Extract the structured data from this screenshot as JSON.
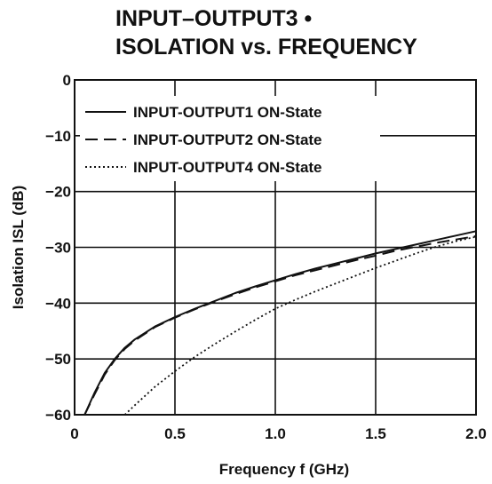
{
  "title_line1": "INPUT–OUTPUT3 •",
  "title_line2": "ISOLATION vs. FREQUENCY",
  "chart_data": {
    "type": "line",
    "xlabel": "Frequency  f (GHz)",
    "ylabel": "Isolation  ISL (dB)",
    "xlim": [
      0,
      2.0
    ],
    "ylim": [
      -60,
      0
    ],
    "xticks": [
      "0",
      "0.5",
      "1.0",
      "1.5",
      "2.0"
    ],
    "yticks": [
      "0",
      "−10",
      "−20",
      "−30",
      "−40",
      "−50",
      "−60"
    ],
    "grid": true,
    "legend": "top-left",
    "series": [
      {
        "name": "INPUT-OUTPUT1 ON-State",
        "style": "solid",
        "x": [
          0.05,
          0.1,
          0.15,
          0.2,
          0.25,
          0.3,
          0.4,
          0.5,
          0.6,
          0.7,
          0.8,
          0.9,
          1.0,
          1.1,
          1.2,
          1.3,
          1.4,
          1.5,
          1.6,
          1.7,
          1.8,
          1.9,
          2.0
        ],
        "y": [
          -60,
          -56,
          -52.5,
          -50,
          -48,
          -46.5,
          -44.2,
          -42.5,
          -41,
          -39.6,
          -38.2,
          -37,
          -35.9,
          -34.8,
          -33.8,
          -32.9,
          -32,
          -31.1,
          -30.3,
          -29.5,
          -28.7,
          -27.9,
          -27.1
        ]
      },
      {
        "name": "INPUT-OUTPUT2 ON-State",
        "style": "dashed",
        "x": [
          0.05,
          0.1,
          0.15,
          0.2,
          0.25,
          0.3,
          0.4,
          0.5,
          0.6,
          0.7,
          0.8,
          0.9,
          1.0,
          1.1,
          1.2,
          1.3,
          1.4,
          1.5,
          1.6,
          1.7,
          1.8,
          1.9,
          2.0
        ],
        "y": [
          -60,
          -56.3,
          -52.8,
          -50.2,
          -48.2,
          -46.7,
          -44.3,
          -42.6,
          -41.1,
          -39.7,
          -38.4,
          -37.2,
          -36.1,
          -35,
          -34.1,
          -33.2,
          -32.3,
          -31.5,
          -30.6,
          -29.9,
          -29.2,
          -28.6,
          -28
        ]
      },
      {
        "name": "INPUT-OUTPUT4 ON-State",
        "style": "dotted",
        "x": [
          0.25,
          0.3,
          0.4,
          0.5,
          0.6,
          0.7,
          0.8,
          0.9,
          1.0,
          1.1,
          1.2,
          1.3,
          1.4,
          1.5,
          1.6,
          1.7,
          1.8,
          1.9,
          2.0
        ],
        "y": [
          -60,
          -58.3,
          -55,
          -52.2,
          -49.6,
          -47.3,
          -45.1,
          -43,
          -41,
          -39.4,
          -37.9,
          -36.5,
          -35.1,
          -33.7,
          -32.4,
          -31.1,
          -29.9,
          -28.9,
          -28.1
        ]
      }
    ]
  }
}
